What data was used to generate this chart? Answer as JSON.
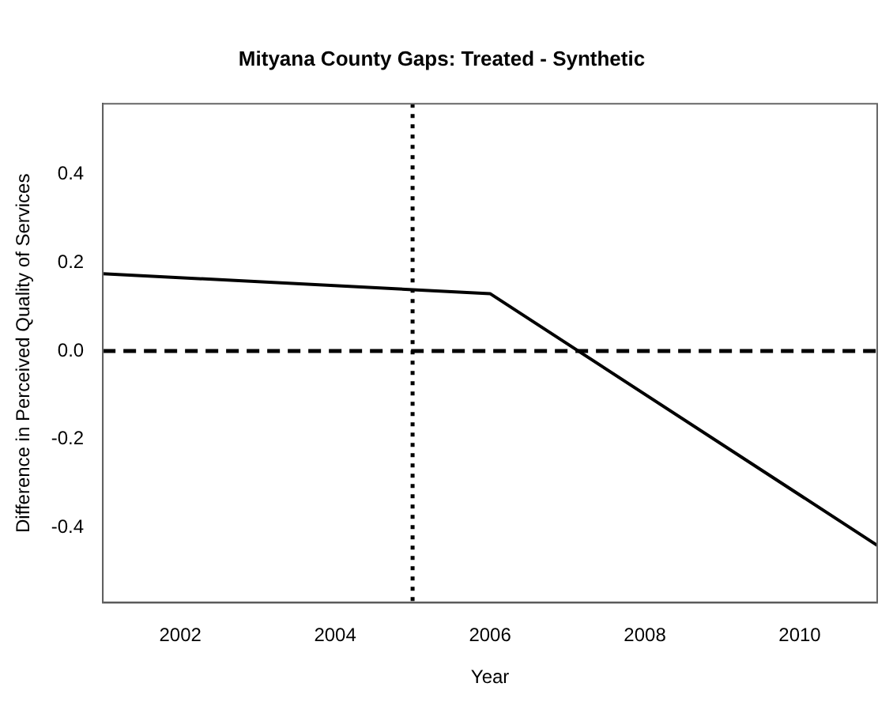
{
  "chart_data": {
    "type": "line",
    "title": "Mityana County Gaps: Treated - Synthetic",
    "xlabel": "Year",
    "ylabel": "Difference in Perceived Quality of Services",
    "x": [
      2001,
      2006,
      2011
    ],
    "series": [
      {
        "color": "#000000",
        "values": [
          0.175,
          0.13,
          -0.44
        ]
      }
    ],
    "xlim": [
      2001,
      2011
    ],
    "xticks": [
      2002,
      2004,
      2006,
      2008,
      2010
    ],
    "ylim": [
      -0.57,
      0.56
    ],
    "yticks": [
      -0.4,
      -0.2,
      {
        "value": 0,
        "label": "0.0"
      },
      0.2,
      0.4
    ],
    "ref_lines": [
      {
        "axis": "y",
        "value": 0,
        "line_style": "dashed",
        "color": "#000000"
      },
      {
        "axis": "x",
        "value": 2005,
        "line_style": "dotted",
        "color": "#000000"
      }
    ],
    "grid": false,
    "legend": false,
    "marker": "none",
    "line_style": "solid"
  }
}
